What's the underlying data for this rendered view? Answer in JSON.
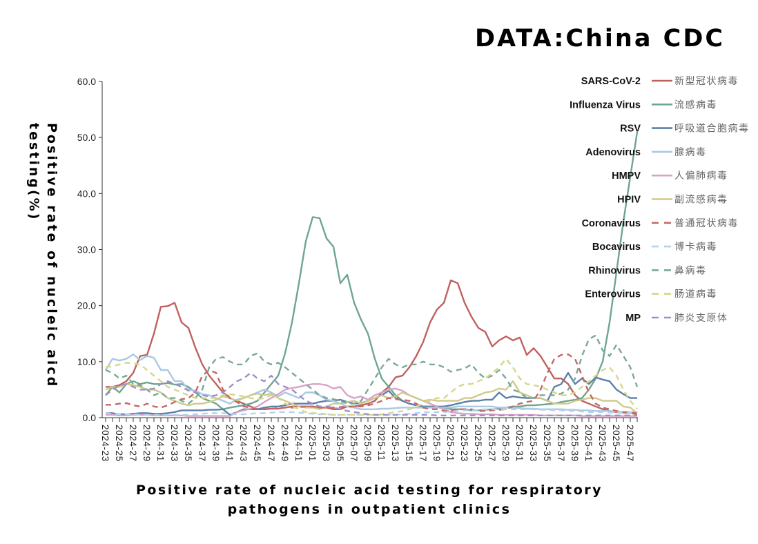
{
  "source_title": "DATA:China CDC",
  "chart_data": {
    "type": "line",
    "title": "Positive rate of nucleic acid testing for respiratory pathogens in outpatient clinics",
    "xlabel": "Positive rate of nucleic acid testing for respiratory pathogens in outpatient clinics",
    "ylabel": "Positive rate of nucleic aicd testing(%)",
    "title_lines": [
      "Positive rate of nucleic acid testing for respiratory",
      "pathogens in outpatient clinics"
    ],
    "ylabel_lines": [
      "Positive rate of nucleic aicd",
      "testing(%)"
    ],
    "ylim": [
      0,
      60
    ],
    "yticks": [
      "0.0",
      "10.0",
      "20.0",
      "30.0",
      "40.0",
      "50.0",
      "60.0"
    ],
    "grid": false,
    "legend_placement": "right",
    "x": [
      "2024-23",
      "2024-24",
      "2024-25",
      "2024-26",
      "2024-27",
      "2024-28",
      "2024-29",
      "2024-30",
      "2024-31",
      "2024-32",
      "2024-33",
      "2024-34",
      "2024-35",
      "2024-36",
      "2024-37",
      "2024-38",
      "2024-39",
      "2024-40",
      "2024-41",
      "2024-42",
      "2024-43",
      "2024-44",
      "2024-45",
      "2024-46",
      "2024-47",
      "2024-48",
      "2024-49",
      "2024-50",
      "2024-51",
      "2024-52",
      "2025-01",
      "2025-02",
      "2025-03",
      "2025-04",
      "2025-05",
      "2025-06",
      "2025-07",
      "2025-08",
      "2025-09",
      "2025-10",
      "2025-11",
      "2025-12",
      "2025-13",
      "2025-14",
      "2025-15",
      "2025-16",
      "2025-17",
      "2025-18",
      "2025-19",
      "2025-20",
      "2025-21",
      "2025-22",
      "2025-23",
      "2025-24",
      "2025-25",
      "2025-26",
      "2025-27",
      "2025-28",
      "2025-29",
      "2025-30",
      "2025-31",
      "2025-32",
      "2025-33",
      "2025-34",
      "2025-35",
      "2025-36",
      "2025-37",
      "2025-38",
      "2025-39",
      "2025-40",
      "2025-41",
      "2025-42",
      "2025-43",
      "2025-44",
      "2025-45",
      "2025-46",
      "2025-47",
      "2025-48"
    ],
    "series": [
      {
        "name": "SARS-CoV-2",
        "cn": "新型冠状病毒",
        "color": "#c0605f",
        "dashed": false,
        "values": [
          5.5,
          5.5,
          5.8,
          6.5,
          8,
          11,
          11.2,
          15,
          19.8,
          19.9,
          20.5,
          17,
          16,
          12.5,
          9.5,
          7.5,
          6,
          4.5,
          3.5,
          3,
          2.5,
          2,
          1.5,
          1.5,
          1.6,
          1.6,
          1.8,
          2,
          2,
          2,
          2,
          1.8,
          1.8,
          1.5,
          1.5,
          2,
          2,
          2.2,
          2.5,
          3,
          4.5,
          5.5,
          7.2,
          7.5,
          9,
          11,
          13.5,
          17,
          19.3,
          20.5,
          24.5,
          24,
          20.5,
          18,
          16,
          15.3,
          12.7,
          13.8,
          14.5,
          13.8,
          14.3,
          11.2,
          12.4,
          11,
          9,
          7,
          7,
          6,
          4,
          3,
          2.5,
          2,
          1.5,
          1.2,
          1,
          0.9,
          0.8,
          0.6
        ]
      },
      {
        "name": "Influenza Virus",
        "cn": "流感病毒",
        "color": "#6fa58e",
        "dashed": false,
        "values": [
          4,
          5.5,
          4.5,
          6,
          6.5,
          6,
          6.3,
          6,
          6,
          6.2,
          5.9,
          6,
          5.5,
          4.5,
          3.5,
          3,
          2.5,
          1.5,
          1.8,
          2,
          2.2,
          2.5,
          3,
          4.5,
          6,
          7.5,
          11.5,
          17,
          24,
          31.5,
          35.8,
          35.6,
          32,
          30.5,
          24,
          25.5,
          20.5,
          17.5,
          15,
          10.5,
          7,
          5.5,
          4,
          3,
          2.5,
          2.2,
          2,
          2,
          1.8,
          1.8,
          1.5,
          1.5,
          1.5,
          1.3,
          1.3,
          1.4,
          1.5,
          1.6,
          1.8,
          2,
          2,
          2.2,
          2.2,
          2.3,
          2.4,
          2.5,
          2.8,
          3,
          3.2,
          3.5,
          5,
          7,
          10,
          17,
          26,
          35,
          43,
          51
        ]
      },
      {
        "name": "RSV",
        "cn": "呼吸道合胞病毒",
        "color": "#5b80a8",
        "dashed": false,
        "values": [
          0.8,
          0.8,
          0.6,
          0.6,
          0.7,
          0.8,
          0.8,
          0.7,
          0.7,
          0.8,
          1,
          1.3,
          1.3,
          1.3,
          1.3,
          1.4,
          1.4,
          1.5,
          0.5,
          1,
          1.5,
          1.5,
          1.5,
          1.8,
          2,
          2,
          2.2,
          2.5,
          2.5,
          2.5,
          2.5,
          2.8,
          3,
          3,
          3.2,
          2.8,
          2.5,
          2.6,
          3,
          3.5,
          4,
          4.8,
          3.5,
          3,
          2.5,
          2.2,
          2,
          2,
          2,
          2,
          2.2,
          2.5,
          2.8,
          3,
          3,
          3.2,
          3.2,
          4.5,
          3.5,
          3.8,
          3.6,
          3.5,
          3.5,
          3.5,
          3,
          5.5,
          6,
          8,
          6,
          7,
          6,
          7.2,
          6.8,
          6.5,
          5,
          4.2,
          3.5,
          3.5
        ]
      },
      {
        "name": "Adenovirus",
        "cn": "腺病毒",
        "color": "#a9c8e4",
        "dashed": false,
        "values": [
          8.5,
          10.5,
          10.2,
          10.5,
          11.3,
          10.3,
          11,
          10.7,
          8.5,
          8.5,
          6.5,
          6.5,
          5,
          4.8,
          4.2,
          4,
          3.5,
          3,
          2.5,
          3.2,
          3.5,
          4,
          4.5,
          5,
          4.5,
          3.8,
          4.5,
          4,
          3.5,
          4.5,
          4.5,
          4,
          3.2,
          3,
          2.5,
          2,
          1.8,
          1.5,
          1.5,
          1.5,
          1.6,
          1.6,
          1.7,
          1.8,
          1.8,
          1.8,
          1.8,
          1.8,
          1.8,
          1.8,
          1.8,
          2,
          2,
          2,
          2,
          2,
          2,
          1.8,
          1.8,
          1.8,
          1.7,
          1.6,
          1.6,
          1.5,
          1.5,
          1.5,
          1.5,
          1.4,
          1.4,
          1.3,
          1.3,
          1.2,
          1.2,
          1.2,
          1.1,
          1,
          1,
          1
        ]
      },
      {
        "name": "HMPV",
        "cn": "人偏肺病毒",
        "color": "#d9a2c8",
        "dashed": false,
        "values": [
          0.5,
          0.5,
          0.4,
          0.4,
          0.5,
          0.5,
          0.5,
          0.4,
          0.4,
          0.4,
          0.4,
          0.4,
          0.3,
          0.3,
          0.3,
          0.3,
          0.3,
          0.3,
          0.3,
          1,
          1.3,
          1.6,
          2,
          2.8,
          3.5,
          4.2,
          5,
          5.3,
          5.5,
          5.8,
          6,
          6,
          5.8,
          5.2,
          5.5,
          4,
          3.5,
          3.8,
          3.2,
          4,
          4.5,
          5,
          5.2,
          4.8,
          4,
          3.5,
          3,
          2.5,
          2,
          1.5,
          1,
          0.8,
          0.7,
          0.7,
          0.6,
          0.6,
          0.6,
          0.5,
          0.5,
          0.5,
          0.5,
          0.5,
          0.5,
          0.4,
          0.4,
          0.4,
          0.4,
          0.4,
          0.4,
          0.3,
          0.3,
          0.3,
          0.3,
          0.3,
          0.3,
          0.3,
          0.3,
          0.3
        ]
      },
      {
        "name": "HPIV",
        "cn": "副流感病毒",
        "color": "#cfc98a",
        "dashed": false,
        "values": [
          5,
          5.5,
          5.5,
          6,
          5.8,
          5.5,
          5,
          5,
          4.5,
          3.5,
          3,
          2.5,
          2.2,
          2.5,
          2.5,
          2.8,
          3.2,
          3.8,
          3.5,
          3,
          3.5,
          4,
          4.3,
          4,
          4.3,
          3.5,
          3,
          2.5,
          2,
          1.8,
          1.8,
          1.5,
          2,
          2.5,
          2.5,
          2.8,
          3,
          2.5,
          3,
          3.5,
          4,
          3.5,
          3.8,
          4.5,
          4,
          3.5,
          3,
          3.2,
          3,
          3,
          3,
          3,
          3.5,
          3.5,
          4,
          4.5,
          4.7,
          5.2,
          5,
          6.5,
          4.5,
          4,
          3.5,
          3.5,
          3,
          2.5,
          2.5,
          2.5,
          3,
          3.2,
          3.5,
          3.5,
          3,
          3,
          3,
          2,
          1.8,
          0.8
        ]
      },
      {
        "name": "Coronavirus",
        "cn": "普通冠状病毒",
        "color": "#c46868",
        "dashed": true,
        "values": [
          2.3,
          2.3,
          2.5,
          2.6,
          2.2,
          2,
          2.5,
          2,
          1.8,
          2.2,
          2.8,
          3.3,
          3.5,
          4.5,
          7.5,
          8.5,
          8,
          5,
          3.5,
          2.8,
          2,
          1.8,
          1.5,
          1.5,
          1.6,
          1.7,
          1.8,
          1.8,
          1.9,
          2,
          2,
          1.8,
          1.8,
          1.8,
          1.9,
          2,
          2,
          2,
          2.2,
          2.5,
          3,
          3.5,
          3.3,
          3.2,
          3,
          2.5,
          1.8,
          1.5,
          1.5,
          1.2,
          1.2,
          1.5,
          1.5,
          1.5,
          1.2,
          1.2,
          1.3,
          1.4,
          1.5,
          2,
          2.5,
          2.8,
          3,
          5,
          8,
          10.5,
          11.2,
          11.3,
          10.5,
          7.5,
          4.5,
          2.5,
          1.8,
          1.5,
          1.2,
          1,
          0.9,
          0.8
        ]
      },
      {
        "name": "Bocavirus",
        "cn": "博卡病毒",
        "color": "#b2d2ee",
        "dashed": true,
        "values": [
          0.8,
          0.7,
          0.6,
          0.6,
          0.6,
          0.5,
          0.5,
          0.5,
          0.5,
          0.5,
          0.5,
          0.5,
          0.5,
          0.6,
          0.7,
          0.8,
          0.8,
          0.8,
          0.7,
          0.6,
          0.6,
          0.7,
          0.8,
          0.8,
          0.9,
          1,
          1,
          1,
          0.9,
          0.8,
          0.7,
          0.6,
          0.6,
          0.5,
          0.5,
          0.5,
          0.5,
          0.5,
          0.5,
          0.5,
          0.5,
          0.5,
          0.5,
          0.6,
          0.7,
          0.8,
          0.9,
          1,
          1,
          1,
          1.1,
          1.2,
          1.3,
          1.3,
          1.4,
          1.5,
          1.5,
          1.5,
          1.5,
          1.5,
          1.5,
          1.5,
          1.5,
          1.4,
          1.4,
          1.3,
          1.3,
          1.2,
          1.2,
          1.1,
          1,
          1,
          1,
          0.9,
          0.9,
          0.8,
          0.8,
          0.8
        ]
      },
      {
        "name": "Rhinovirus",
        "cn": "鼻病毒",
        "color": "#7aa898",
        "dashed": true,
        "values": [
          8.5,
          8,
          7,
          7.5,
          6,
          5.8,
          5,
          4,
          4.5,
          3.5,
          3.5,
          3,
          2.5,
          3.5,
          5,
          9,
          10.5,
          10.8,
          10,
          9.5,
          9.5,
          11,
          11.5,
          10,
          9.5,
          9.8,
          9,
          8,
          7,
          6,
          5,
          4,
          3.5,
          3.3,
          3,
          2.5,
          2.5,
          3,
          5,
          7,
          9,
          10.5,
          9.5,
          9,
          9.5,
          9.5,
          10,
          9.5,
          9.5,
          9,
          8.2,
          8.5,
          8.8,
          9.5,
          8,
          7,
          7.5,
          8.5,
          7,
          5,
          4.5,
          3.5,
          3.5,
          4,
          4,
          4,
          4.3,
          5,
          7,
          11,
          14,
          14.7,
          12,
          11,
          13,
          11,
          9,
          5.5
        ]
      },
      {
        "name": "Enterovirus",
        "cn": "肠道病毒",
        "color": "#d6d68a",
        "dashed": true,
        "values": [
          9,
          9.2,
          9.5,
          9.8,
          9.7,
          9.5,
          8.5,
          7.5,
          6.5,
          5.5,
          5,
          4.5,
          4,
          3.5,
          3.5,
          3.5,
          3.5,
          4,
          4.2,
          4,
          3.8,
          3.5,
          3.3,
          3.5,
          4,
          3.5,
          2.5,
          2,
          1.5,
          1,
          0.8,
          0.8,
          0.6,
          0.5,
          0.5,
          0.5,
          0.5,
          0.5,
          0.5,
          0.5,
          0.6,
          0.8,
          1,
          1.2,
          1.5,
          2,
          2.5,
          3,
          3.5,
          3.5,
          4.5,
          5.5,
          6,
          6,
          6.5,
          7,
          8,
          9,
          10.5,
          9,
          7,
          6,
          5.8,
          5.5,
          5,
          4.5,
          4,
          4,
          4.5,
          5.5,
          6.5,
          7.5,
          8.5,
          9,
          7.5,
          5,
          3,
          1.5
        ]
      },
      {
        "name": "MP",
        "cn": "肺炎支原体",
        "color": "#9f8ec8",
        "dashed": true,
        "values": [
          4,
          5,
          5.8,
          6,
          5.5,
          5,
          5,
          5.2,
          6,
          6.5,
          6,
          5.5,
          4.8,
          4.5,
          4,
          3.8,
          4,
          4.5,
          5.5,
          6.5,
          7,
          8,
          7,
          6.5,
          7.5,
          6,
          5.5,
          5,
          4,
          3,
          2.5,
          2,
          2,
          1.8,
          1.5,
          1.2,
          1,
          0.8,
          0.6,
          0.5,
          0.5,
          0.5,
          0.5,
          0.5,
          0.5,
          0.5,
          0.5,
          0.5,
          0.4,
          0.4,
          0.4,
          0.4,
          0.4,
          0.4,
          0.4,
          0.4,
          0.4,
          0.4,
          0.4,
          0.4,
          0.4,
          0.4,
          0.4,
          0.4,
          0.4,
          0.4,
          0.4,
          0.4,
          0.4,
          0.4,
          0.4,
          0.4,
          0.4,
          0.4,
          0.4,
          0.4,
          0.4,
          0.4
        ]
      }
    ]
  }
}
